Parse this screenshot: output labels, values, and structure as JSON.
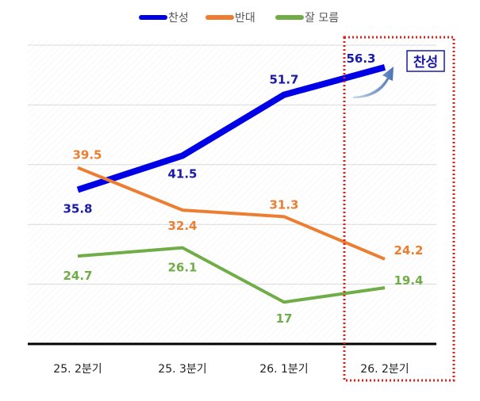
{
  "chart_data": {
    "type": "line",
    "categories": [
      "25. 2분기",
      "25. 3분기",
      "26. 1분기",
      "26. 2분기"
    ],
    "ylim": [
      10,
      60
    ],
    "grid": true,
    "legend_position": "top",
    "series": [
      {
        "name": "찬성",
        "color": "#0000e6",
        "values": [
          35.8,
          41.5,
          51.7,
          56.3
        ],
        "labels": [
          "35.8",
          "41.5",
          "51.7",
          "56.3"
        ]
      },
      {
        "name": "반대",
        "color": "#ed7d31",
        "values": [
          39.5,
          32.4,
          31.3,
          24.2
        ],
        "labels": [
          "39.5",
          "32.4",
          "31.3",
          "24.2"
        ]
      },
      {
        "name": "잘 모름",
        "color": "#70ad47",
        "values": [
          24.7,
          26.1,
          17,
          19.4
        ],
        "labels": [
          "24.7",
          "26.1",
          "17",
          "19.4"
        ]
      }
    ],
    "annotation": {
      "text": "찬성",
      "color": "#1a1aa6",
      "highlight_color": "#e0201b",
      "highlighted_category": "26. 2분기"
    }
  }
}
